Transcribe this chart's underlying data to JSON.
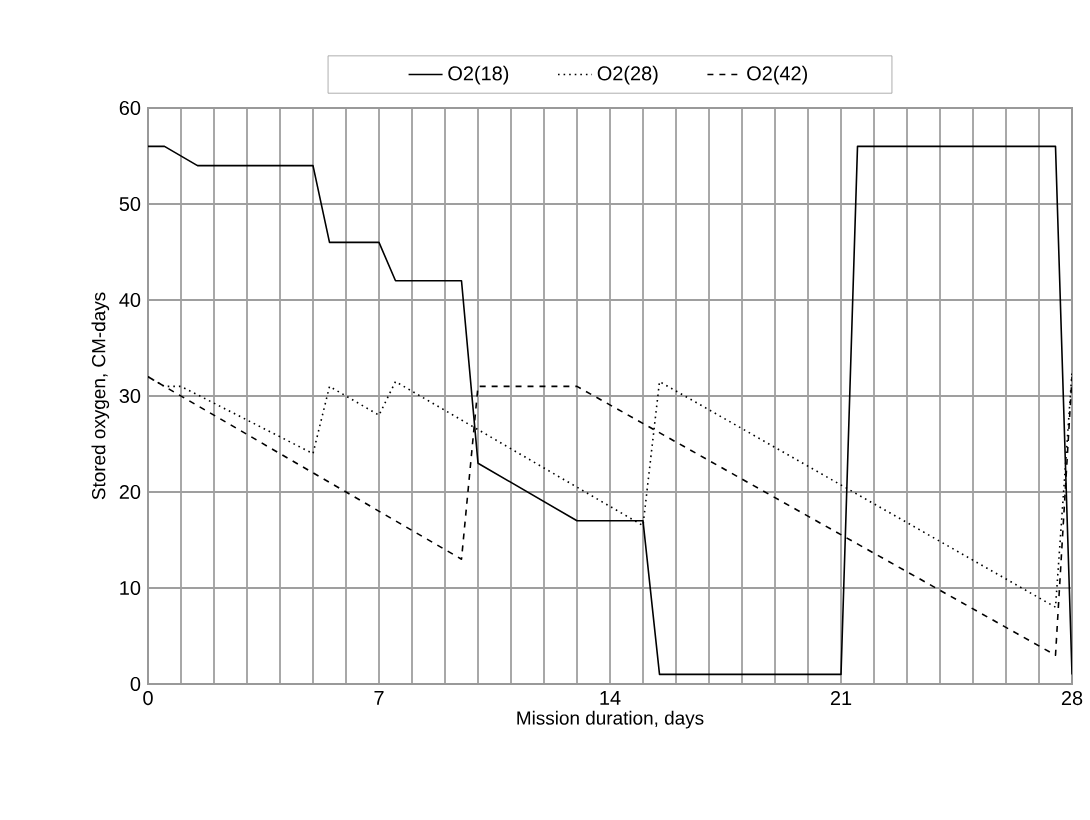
{
  "chart_data": {
    "type": "line",
    "xlabel": "Mission duration, days",
    "ylabel": "Stored oxygen, CM-days",
    "xlim": [
      0,
      28
    ],
    "ylim": [
      0,
      60
    ],
    "xticks": [
      0,
      {
        "value": 1,
        "label": null
      },
      {
        "value": 2,
        "label": null
      },
      {
        "value": 3,
        "label": null
      },
      {
        "value": 4,
        "label": null
      },
      {
        "value": 5,
        "label": null
      },
      {
        "value": 6,
        "label": null
      },
      7,
      {
        "value": 8,
        "label": null
      },
      {
        "value": 9,
        "label": null
      },
      {
        "value": 10,
        "label": null
      },
      {
        "value": 11,
        "label": null
      },
      {
        "value": 12,
        "label": null
      },
      {
        "value": 13,
        "label": null
      },
      14,
      {
        "value": 15,
        "label": null
      },
      {
        "value": 16,
        "label": null
      },
      {
        "value": 17,
        "label": null
      },
      {
        "value": 18,
        "label": null
      },
      {
        "value": 19,
        "label": null
      },
      {
        "value": 20,
        "label": null
      },
      21,
      {
        "value": 22,
        "label": null
      },
      {
        "value": 23,
        "label": null
      },
      {
        "value": 24,
        "label": null
      },
      {
        "value": 25,
        "label": null
      },
      {
        "value": 26,
        "label": null
      },
      {
        "value": 27,
        "label": null
      },
      28
    ],
    "yticks": [
      0,
      10,
      20,
      30,
      40,
      50,
      60
    ],
    "grid": true,
    "legend": "top",
    "marker": "none",
    "series": [
      {
        "name": "O2(18)",
        "color": "#000000",
        "line_style": "solid",
        "x": [
          0,
          0.5,
          1.5,
          5,
          5.5,
          7,
          7.5,
          9.5,
          10,
          13,
          15,
          15.5,
          21,
          21.5,
          27.5,
          28
        ],
        "values": [
          56,
          56,
          54,
          54,
          46,
          46,
          42,
          42,
          23,
          17,
          17,
          1,
          1,
          56,
          56,
          1
        ]
      },
      {
        "name": "O2(28)",
        "color": "#000000",
        "line_style": "dotted",
        "x": [
          0,
          0.5,
          1,
          5,
          5.5,
          7,
          7.5,
          15,
          15.5,
          27.5,
          28
        ],
        "values": [
          32,
          31,
          31,
          24,
          31,
          28,
          31.5,
          16.5,
          31.5,
          8,
          32.5
        ]
      },
      {
        "name": "O2(42)",
        "color": "#000000",
        "line_style": "dashed",
        "x": [
          0,
          9.5,
          10,
          13,
          27.5,
          28
        ],
        "values": [
          32,
          13,
          31,
          31,
          3,
          32
        ]
      }
    ]
  }
}
